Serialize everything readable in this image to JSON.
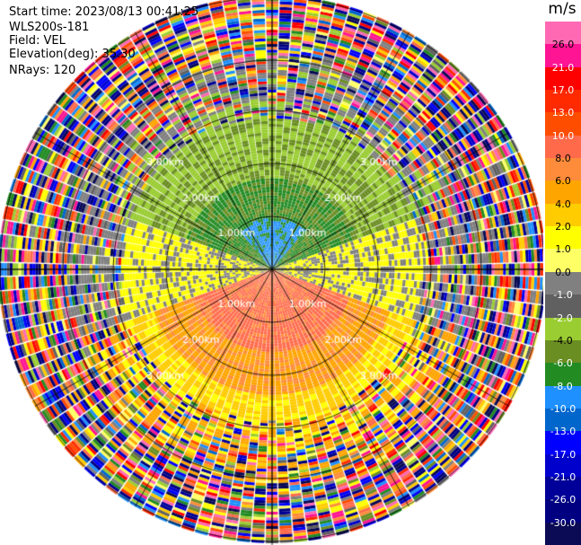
{
  "header": {
    "start_time": "Start time: 2023/08/13 00:41:25",
    "instrument": "WLS200s-181",
    "field": "Field: VEL",
    "elevation": "Elevation(deg): 35.30",
    "nrays": "NRays: 120"
  },
  "chart_data": {
    "type": "heatmap",
    "subtype": "radar-ppi",
    "field": "VEL",
    "units": "m/s",
    "n_rays": 120,
    "range_rings_km": [
      "1.00km",
      "2.00km",
      "3.00km"
    ],
    "ring_label_angles_deg": [
      45,
      135,
      225,
      315
    ],
    "grid": true,
    "colorbar": {
      "label": "m/s",
      "ticks": [
        "26.0",
        "21.0",
        "17.0",
        "13.0",
        "10.0",
        "8.0",
        "6.0",
        "4.0",
        "2.0",
        "1.0",
        "0.0",
        "-1.0",
        "-2.0",
        "-4.0",
        "-6.0",
        "-8.0",
        "-10.0",
        "-13.0",
        "-17.0",
        "-21.0",
        "-26.0",
        "-30.0"
      ],
      "colors": [
        "#ff69b4",
        "#ff1493",
        "#ff0000",
        "#ff2a00",
        "#ff4d00",
        "#ff6a4a",
        "#ff8c3a",
        "#ffa500",
        "#ffcc00",
        "#ffff00",
        "#ffff66",
        "#808080",
        "#606060",
        "#9acd32",
        "#6b8e23",
        "#228b22",
        "#1e90ff",
        "#0066cc",
        "#0000ff",
        "#0000cd",
        "#000099",
        "#000080",
        "#0a0a55"
      ]
    }
  }
}
